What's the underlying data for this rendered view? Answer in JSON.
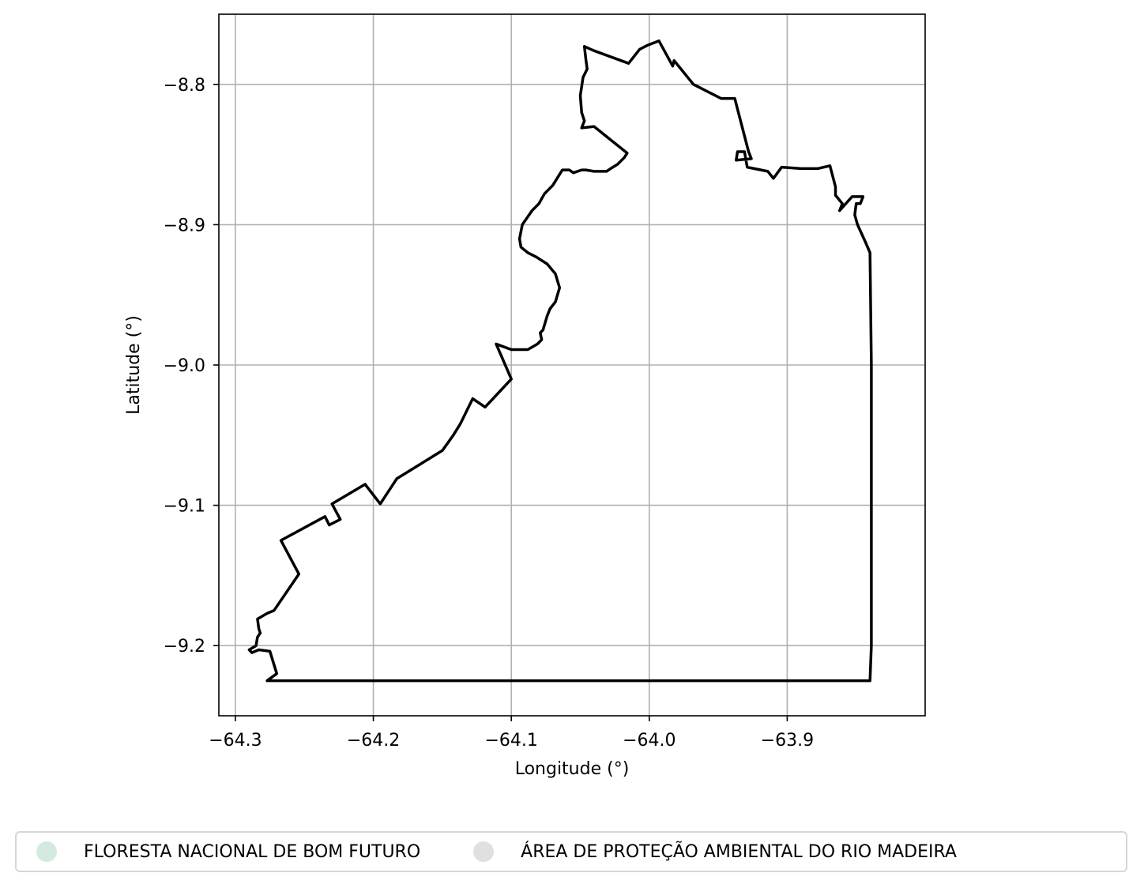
{
  "chart_data": {
    "type": "map",
    "xlabel": "Longitude (°)",
    "ylabel": "Latitude (°)",
    "xlim": [
      -64.312,
      -63.8
    ],
    "ylim": [
      -9.25,
      -8.75
    ],
    "grid": true,
    "x_ticks": [
      {
        "value": -64.3,
        "label": "−64.3"
      },
      {
        "value": -64.2,
        "label": "−64.2"
      },
      {
        "value": -64.1,
        "label": "−64.1"
      },
      {
        "value": -64.0,
        "label": "−64.0"
      },
      {
        "value": -63.9,
        "label": "−63.9"
      }
    ],
    "y_ticks": [
      {
        "value": -8.8,
        "label": "−8.8"
      },
      {
        "value": -8.9,
        "label": "−8.9"
      },
      {
        "value": -9.0,
        "label": "−9.0"
      },
      {
        "value": -9.1,
        "label": "−9.1"
      },
      {
        "value": -9.2,
        "label": "−9.2"
      }
    ],
    "outline_color": "#000000",
    "grid_color": "#b0b0b0",
    "boundary": [
      [
        -64.277,
        -9.225
      ],
      [
        -64.27,
        -9.22
      ],
      [
        -64.275,
        -9.204
      ],
      [
        -64.283,
        -9.203
      ],
      [
        -64.288,
        -9.205
      ],
      [
        -64.29,
        -9.203
      ],
      [
        -64.285,
        -9.2
      ],
      [
        -64.284,
        -9.194
      ],
      [
        -64.282,
        -9.191
      ],
      [
        -64.283,
        -9.188
      ],
      [
        -64.284,
        -9.181
      ],
      [
        -64.277,
        -9.177
      ],
      [
        -64.272,
        -9.175
      ],
      [
        -64.254,
        -9.149
      ],
      [
        -64.267,
        -9.125
      ],
      [
        -64.235,
        -9.108
      ],
      [
        -64.232,
        -9.114
      ],
      [
        -64.224,
        -9.11
      ],
      [
        -64.23,
        -9.099
      ],
      [
        -64.206,
        -9.085
      ],
      [
        -64.195,
        -9.099
      ],
      [
        -64.183,
        -9.081
      ],
      [
        -64.15,
        -9.061
      ],
      [
        -64.142,
        -9.05
      ],
      [
        -64.137,
        -9.042
      ],
      [
        -64.128,
        -9.024
      ],
      [
        -64.119,
        -9.03
      ],
      [
        -64.1,
        -9.01
      ],
      [
        -64.111,
        -8.985
      ],
      [
        -64.1,
        -8.989
      ],
      [
        -64.088,
        -8.989
      ],
      [
        -64.081,
        -8.985
      ],
      [
        -64.078,
        -8.982
      ],
      [
        -64.079,
        -8.977
      ],
      [
        -64.077,
        -8.975
      ],
      [
        -64.074,
        -8.965
      ],
      [
        -64.072,
        -8.96
      ],
      [
        -64.068,
        -8.955
      ],
      [
        -64.065,
        -8.945
      ],
      [
        -64.068,
        -8.935
      ],
      [
        -64.074,
        -8.928
      ],
      [
        -64.082,
        -8.923
      ],
      [
        -64.088,
        -8.92
      ],
      [
        -64.093,
        -8.916
      ],
      [
        -64.094,
        -8.91
      ],
      [
        -64.092,
        -8.9
      ],
      [
        -64.085,
        -8.89
      ],
      [
        -64.08,
        -8.885
      ],
      [
        -64.076,
        -8.878
      ],
      [
        -64.07,
        -8.872
      ],
      [
        -64.063,
        -8.861
      ],
      [
        -64.058,
        -8.861
      ],
      [
        -64.055,
        -8.863
      ],
      [
        -64.049,
        -8.861
      ],
      [
        -64.046,
        -8.861
      ],
      [
        -64.04,
        -8.862
      ],
      [
        -64.031,
        -8.862
      ],
      [
        -64.028,
        -8.86
      ],
      [
        -64.023,
        -8.857
      ],
      [
        -64.018,
        -8.852
      ],
      [
        -64.016,
        -8.849
      ],
      [
        -64.04,
        -8.83
      ],
      [
        -64.049,
        -8.831
      ],
      [
        -64.047,
        -8.826
      ],
      [
        -64.049,
        -8.82
      ],
      [
        -64.05,
        -8.808
      ],
      [
        -64.048,
        -8.795
      ],
      [
        -64.045,
        -8.789
      ],
      [
        -64.046,
        -8.782
      ],
      [
        -64.047,
        -8.773
      ],
      [
        -64.04,
        -8.776
      ],
      [
        -64.015,
        -8.785
      ],
      [
        -64.007,
        -8.775
      ],
      [
        -64.001,
        -8.772
      ],
      [
        -63.993,
        -8.769
      ],
      [
        -63.983,
        -8.787
      ],
      [
        -63.982,
        -8.783
      ],
      [
        -63.968,
        -8.8
      ],
      [
        -63.948,
        -8.81
      ],
      [
        -63.938,
        -8.81
      ],
      [
        -63.928,
        -8.848
      ],
      [
        -63.926,
        -8.853
      ],
      [
        -63.937,
        -8.854
      ],
      [
        -63.936,
        -8.848
      ],
      [
        -63.931,
        -8.848
      ],
      [
        -63.929,
        -8.859
      ],
      [
        -63.924,
        -8.86
      ],
      [
        -63.914,
        -8.862
      ],
      [
        -63.91,
        -8.867
      ],
      [
        -63.904,
        -8.859
      ],
      [
        -63.89,
        -8.86
      ],
      [
        -63.878,
        -8.86
      ],
      [
        -63.869,
        -8.858
      ],
      [
        -63.865,
        -8.873
      ],
      [
        -63.865,
        -8.879
      ],
      [
        -63.86,
        -8.885
      ],
      [
        -63.862,
        -8.89
      ],
      [
        -63.853,
        -8.88
      ],
      [
        -63.845,
        -8.88
      ],
      [
        -63.847,
        -8.885
      ],
      [
        -63.85,
        -8.885
      ],
      [
        -63.851,
        -8.893
      ],
      [
        -63.849,
        -8.9
      ],
      [
        -63.843,
        -8.913
      ],
      [
        -63.84,
        -8.92
      ],
      [
        -63.839,
        -9.0
      ],
      [
        -63.839,
        -9.2
      ],
      [
        -63.84,
        -9.225
      ]
    ]
  },
  "legend": {
    "items": [
      {
        "label": "FLORESTA NACIONAL DE BOM FUTURO",
        "color": "#d2ebde"
      },
      {
        "label": "ÁREA DE PROTEÇÃO AMBIENTAL DO RIO MADEIRA",
        "color": "#e0e0e0"
      }
    ]
  }
}
